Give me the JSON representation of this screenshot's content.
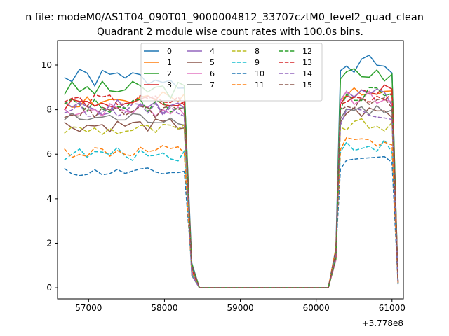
{
  "suptitle": "n file: modeM0/AS1T04_090T01_9000004812_33707cztM0_level2_quad_clean",
  "chart_data": {
    "type": "line",
    "title": "Quadrant 2 module wise count rates with 100.0s bins.",
    "xlabel": "",
    "ylabel": "",
    "x_offset_label": "+3.778e8",
    "xlim": [
      56590,
      61150
    ],
    "ylim": [
      -0.5,
      11.1
    ],
    "xticks": [
      57000,
      58000,
      59000,
      60000,
      61000
    ],
    "xtick_labels": [
      "57000",
      "58000",
      "59000",
      "60000",
      "61000"
    ],
    "yticks": [
      0,
      2,
      4,
      6,
      8,
      10
    ],
    "ytick_labels": [
      "0",
      "2",
      "4",
      "6",
      "8",
      "10"
    ],
    "legend_position": "top-center",
    "x": [
      56680,
      56780,
      56880,
      56980,
      57080,
      57180,
      57280,
      57380,
      57480,
      57580,
      57680,
      57780,
      57880,
      57980,
      58080,
      58180,
      58260,
      58360,
      58460,
      58560,
      58660,
      58760,
      58860,
      58960,
      59060,
      59160,
      59260,
      59360,
      59460,
      59560,
      59660,
      59760,
      59860,
      59960,
      60060,
      60160,
      60260,
      60320,
      60400,
      60500,
      60600,
      60700,
      60800,
      60900,
      61000,
      61080
    ],
    "base_shape": [
      1,
      1,
      1,
      1,
      1,
      1,
      1,
      1,
      1,
      1,
      1,
      1,
      1,
      1,
      1,
      1,
      1,
      0.12,
      0,
      0,
      0,
      0,
      0,
      0,
      0,
      0,
      0,
      0,
      0,
      0,
      0,
      0,
      0,
      0,
      0,
      0,
      0.16,
      0.95,
      1,
      1,
      1,
      1,
      1,
      1,
      0.98,
      0.03
    ],
    "series": [
      {
        "name": "0",
        "color": "#1f77b4",
        "dash": "solid",
        "level1": 9.4,
        "level2": 10.0,
        "jitter": 0.45,
        "seed": 1
      },
      {
        "name": "1",
        "color": "#ff7f0e",
        "dash": "solid",
        "level1": 8.4,
        "level2": 9.0,
        "jitter": 0.4,
        "seed": 2
      },
      {
        "name": "2",
        "color": "#2ca02c",
        "dash": "solid",
        "level1": 8.9,
        "level2": 9.6,
        "jitter": 0.4,
        "seed": 3
      },
      {
        "name": "3",
        "color": "#d62728",
        "dash": "solid",
        "level1": 8.3,
        "level2": 8.8,
        "jitter": 0.35,
        "seed": 4
      },
      {
        "name": "4",
        "color": "#9467bd",
        "dash": "solid",
        "level1": 8.1,
        "level2": 8.6,
        "jitter": 0.35,
        "seed": 5
      },
      {
        "name": "5",
        "color": "#8c564b",
        "dash": "solid",
        "level1": 7.3,
        "level2": 7.9,
        "jitter": 0.3,
        "seed": 6
      },
      {
        "name": "6",
        "color": "#e377c2",
        "dash": "solid",
        "level1": 8.0,
        "level2": 8.5,
        "jitter": 0.35,
        "seed": 7
      },
      {
        "name": "7",
        "color": "#7f7f7f",
        "dash": "solid",
        "level1": 7.6,
        "level2": 8.0,
        "jitter": 0.3,
        "seed": 8
      },
      {
        "name": "8",
        "color": "#bcbd22",
        "dash": "dashed",
        "level1": 7.1,
        "level2": 7.3,
        "jitter": 0.3,
        "seed": 9
      },
      {
        "name": "9",
        "color": "#17becf",
        "dash": "dashed",
        "level1": 6.0,
        "level2": 6.4,
        "jitter": 0.3,
        "seed": 10
      },
      {
        "name": "10",
        "color": "#1f77b4",
        "dash": "dashed",
        "level1": 5.2,
        "level2": 5.8,
        "jitter": 0.2,
        "seed": 11
      },
      {
        "name": "11",
        "color": "#ff7f0e",
        "dash": "dashed",
        "level1": 6.1,
        "level2": 6.5,
        "jitter": 0.3,
        "seed": 12
      },
      {
        "name": "12",
        "color": "#2ca02c",
        "dash": "dashed",
        "level1": 8.2,
        "level2": 8.7,
        "jitter": 0.35,
        "seed": 13
      },
      {
        "name": "13",
        "color": "#d62728",
        "dash": "dashed",
        "level1": 8.4,
        "level2": 8.6,
        "jitter": 0.3,
        "seed": 14
      },
      {
        "name": "14",
        "color": "#9467bd",
        "dash": "dashed",
        "level1": 8.0,
        "level2": 7.9,
        "jitter": 0.3,
        "seed": 15
      },
      {
        "name": "15",
        "color": "#8c564b",
        "dash": "dashed",
        "level1": 7.9,
        "level2": 8.3,
        "jitter": 0.3,
        "seed": 16
      }
    ]
  }
}
